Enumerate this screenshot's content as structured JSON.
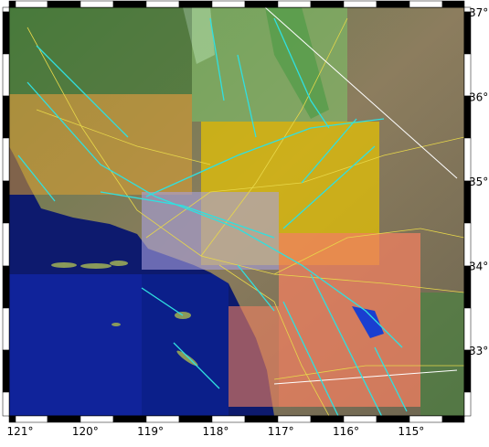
{
  "map": {
    "longitude_labels": [
      "121°",
      "120°",
      "119°",
      "118°",
      "117°",
      "116°",
      "115°"
    ],
    "latitude_labels": [
      "37°",
      "36°",
      "35°",
      "34°",
      "33°"
    ]
  }
}
